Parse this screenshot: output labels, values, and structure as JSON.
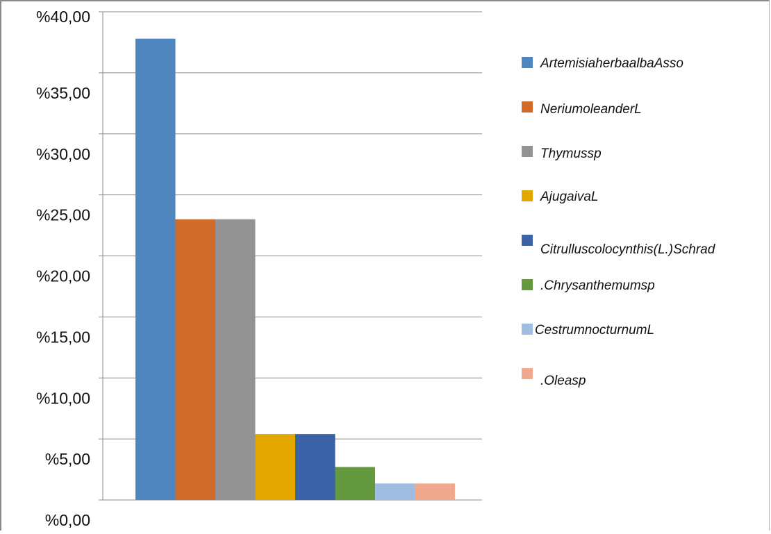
{
  "chart_data": {
    "type": "bar",
    "title": "",
    "xlabel": "",
    "ylabel": "",
    "ylim": [
      0,
      40
    ],
    "y_ticks": [
      "%0,00",
      "%5,00",
      "%10,00",
      "%15,00",
      "%20,00",
      "%25,00",
      "%30,00",
      "%35,00",
      "%40,00"
    ],
    "grid": true,
    "legend_position": "right",
    "series": [
      {
        "name": "ArtemisiaherbaalbaAsso",
        "values": [
          37.8
        ],
        "color": "#4f86bf"
      },
      {
        "name": "NeriumoleanderL",
        "values": [
          23.0
        ],
        "color": "#d16b2a"
      },
      {
        "name": "Thymussp",
        "values": [
          23.0
        ],
        "color": "#939393"
      },
      {
        "name": "AjugaivaL",
        "values": [
          5.4
        ],
        "color": "#e2a800"
      },
      {
        "name": "Citrulluscolocynthis(L.)Schrad",
        "values": [
          5.4
        ],
        "color": "#3a63aa"
      },
      {
        "name": ".Chrysanthemumsp",
        "values": [
          2.7
        ],
        "color": "#65993f"
      },
      {
        "name": "CestrumnocturnumL",
        "values": [
          1.35
        ],
        "color": "#9fbde0"
      },
      {
        "name": ".Oleasp",
        "values": [
          1.35
        ],
        "color": "#f1a98e"
      }
    ]
  }
}
